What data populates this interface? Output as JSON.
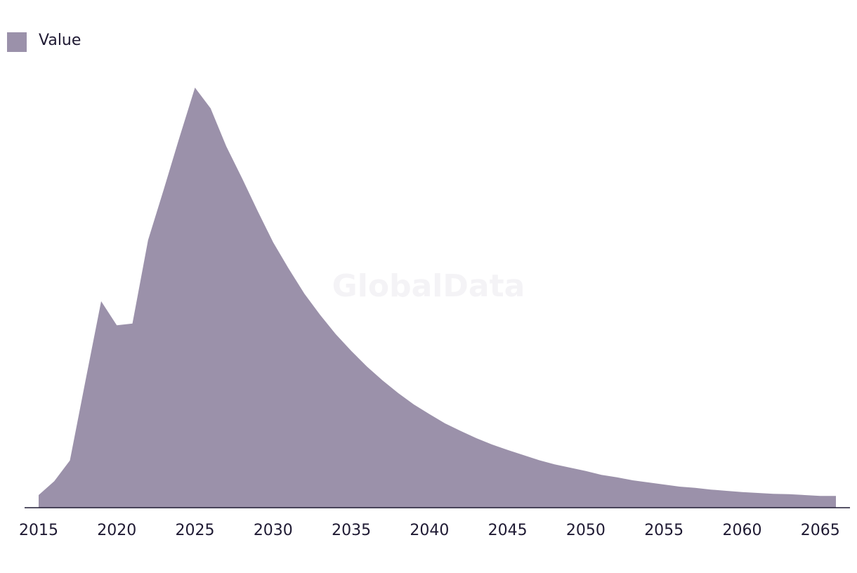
{
  "chart_data": {
    "type": "area",
    "watermark": "GlobalData",
    "x": [
      2015,
      2016,
      2017,
      2018,
      2019,
      2020,
      2021,
      2022,
      2023,
      2024,
      2025,
      2026,
      2027,
      2028,
      2029,
      2030,
      2031,
      2032,
      2033,
      2034,
      2035,
      2036,
      2037,
      2038,
      2039,
      2040,
      2041,
      2042,
      2043,
      2044,
      2045,
      2046,
      2047,
      2048,
      2049,
      2050,
      2051,
      2052,
      2053,
      2054,
      2055,
      2056,
      2057,
      2058,
      2059,
      2060,
      2061,
      2062,
      2063,
      2064,
      2065,
      2066
    ],
    "series": [
      {
        "name": "Value",
        "color": "#9b91aa",
        "values": [
          3.0,
          6.3,
          11.2,
          30.2,
          49.0,
          43.3,
          43.7,
          63.5,
          75.5,
          87.8,
          99.7,
          94.8,
          85.8,
          78.3,
          70.5,
          63.0,
          56.7,
          50.8,
          45.8,
          41.2,
          37.2,
          33.5,
          30.2,
          27.2,
          24.5,
          22.2,
          20.0,
          18.2,
          16.5,
          15.0,
          13.7,
          12.5,
          11.3,
          10.3,
          9.5,
          8.7,
          7.8,
          7.2,
          6.5,
          6.0,
          5.5,
          5.0,
          4.7,
          4.3,
          4.0,
          3.7,
          3.5,
          3.3,
          3.2,
          3.0,
          2.8,
          2.8
        ]
      }
    ],
    "xlim": [
      2015,
      2066
    ],
    "xticks": [
      2015,
      2020,
      2025,
      2030,
      2035,
      2040,
      2045,
      2050,
      2055,
      2060,
      2065
    ],
    "ylim": [
      0,
      100
    ],
    "legend": "top-left"
  }
}
